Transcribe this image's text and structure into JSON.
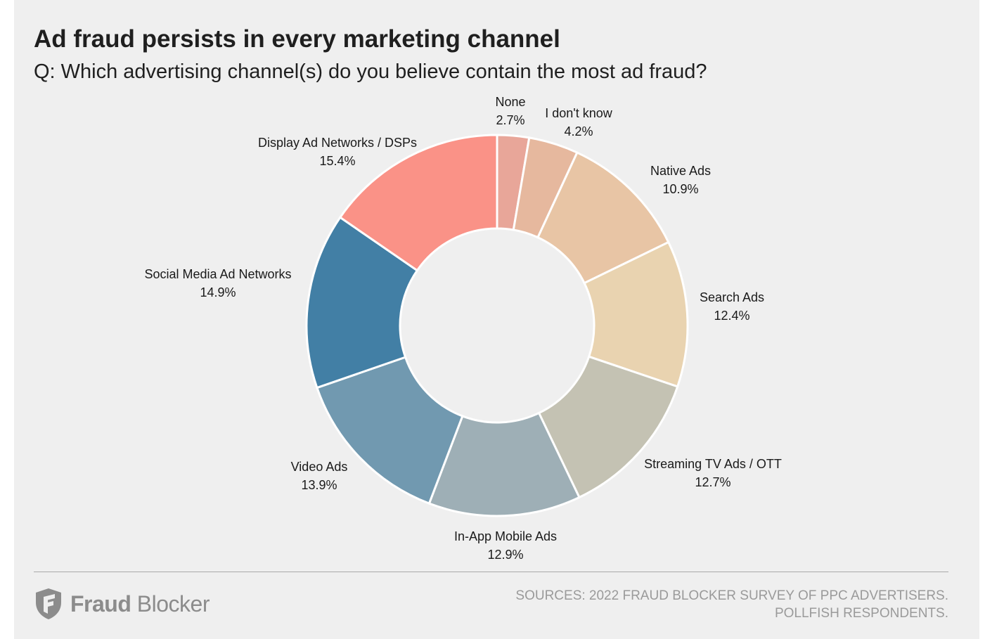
{
  "header": {
    "title": "Ad fraud persists in every marketing channel",
    "subtitle": "Q: Which advertising channel(s) do you believe contain the most ad fraud?"
  },
  "chart_data": {
    "type": "pie",
    "variant": "donut",
    "title": "Ad fraud persists in every marketing channel",
    "subtitle": "Q: Which advertising channel(s) do you believe contain the most ad fraud?",
    "unit": "%",
    "slices": [
      {
        "label": "None",
        "value": 2.7,
        "value_label": "2.7%",
        "color": "#e8a699"
      },
      {
        "label": "I don't know",
        "value": 4.2,
        "value_label": "4.2%",
        "color": "#e6b89e"
      },
      {
        "label": "Native Ads",
        "value": 10.9,
        "value_label": "10.9%",
        "color": "#e8c5a5"
      },
      {
        "label": "Search Ads",
        "value": 12.4,
        "value_label": "12.4%",
        "color": "#e9d3b0"
      },
      {
        "label": "Streaming TV Ads / OTT",
        "value": 12.7,
        "value_label": "12.7%",
        "color": "#c4c2b3"
      },
      {
        "label": "In-App Mobile Ads",
        "value": 12.9,
        "value_label": "12.9%",
        "color": "#9eafb6"
      },
      {
        "label": "Video Ads",
        "value": 13.9,
        "value_label": "13.9%",
        "color": "#7199b0"
      },
      {
        "label": "Social Media Ad Networks",
        "value": 14.9,
        "value_label": "14.9%",
        "color": "#427fa5"
      },
      {
        "label": "Display Ad Networks / DSPs",
        "value": 15.4,
        "value_label": "15.4%",
        "color": "#fa9287"
      }
    ],
    "start_angle": "top (12 o'clock)",
    "direction": "clockwise",
    "legend": "none (direct labels)"
  },
  "footer": {
    "brand_bold": "Fraud",
    "brand_light": "Blocker",
    "sources_line1": "SOURCES: 2022 FRAUD BLOCKER SURVEY OF PPC ADVERTISERS.",
    "sources_line2": "POLLFISH RESPONDENTS."
  }
}
